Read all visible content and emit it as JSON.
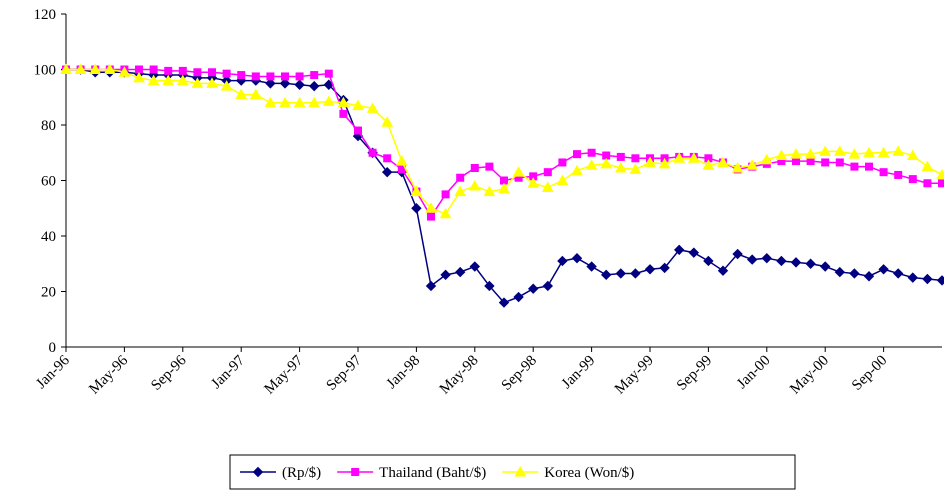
{
  "chart_data": {
    "type": "line",
    "categories": [
      "Jan-96",
      null,
      null,
      null,
      "May-96",
      null,
      null,
      null,
      "Sep-96",
      null,
      null,
      null,
      "Jan-97",
      null,
      null,
      null,
      "May-97",
      null,
      null,
      null,
      "Sep-97",
      null,
      null,
      null,
      "Jan-98",
      null,
      null,
      null,
      "May-98",
      null,
      null,
      null,
      "Sep-98",
      null,
      null,
      null,
      "Jan-99",
      null,
      null,
      null,
      "May-99",
      null,
      null,
      null,
      "Sep-99",
      null,
      null,
      null,
      "Jan-00",
      null,
      null,
      null,
      "May-00",
      null,
      null,
      null,
      "Sep-00",
      null,
      null,
      null,
      null
    ],
    "series": [
      {
        "name": "(Rp/$)",
        "color": "#000080",
        "marker": "diamond",
        "values": [
          100,
          100,
          99,
          99,
          99,
          98.5,
          98,
          98,
          98,
          97,
          97,
          96,
          96,
          96,
          95,
          95,
          94.5,
          94,
          94.5,
          89,
          76,
          70,
          63,
          63,
          50,
          22,
          26,
          27,
          29,
          22,
          16,
          18,
          21,
          22,
          31,
          32,
          29,
          26,
          26.5,
          26.5,
          28,
          28.5,
          35,
          34,
          31,
          27.5,
          33.5,
          31.5,
          32,
          31,
          30.5,
          30,
          29,
          27,
          26.5,
          25.5,
          28,
          26.5,
          25,
          24.5,
          24
        ]
      },
      {
        "name": "Thailand (Baht/$)",
        "color": "#ff00ff",
        "marker": "square",
        "values": [
          100,
          100,
          100,
          100,
          100,
          100,
          100,
          99.5,
          99.5,
          99,
          99,
          98.5,
          98,
          97.5,
          97.5,
          97.5,
          97.5,
          98,
          98.5,
          84,
          78,
          70,
          68,
          64,
          56,
          47,
          55,
          61,
          64.5,
          65,
          60,
          61,
          61.5,
          63,
          66.5,
          69.5,
          70,
          69,
          68.5,
          68,
          68,
          68,
          68.5,
          68.5,
          68,
          66.5,
          64,
          65,
          66,
          67,
          67,
          67,
          66.5,
          66.5,
          65,
          65,
          63,
          62,
          60.5,
          59,
          59
        ]
      },
      {
        "name": "Korea (Won/$)",
        "color": "#ffff00",
        "marker": "triangle",
        "values": [
          100,
          100,
          100,
          100,
          99,
          97,
          96,
          96,
          96,
          95,
          95,
          94,
          91,
          91,
          88,
          88,
          88,
          88,
          88.5,
          88,
          87,
          86,
          81,
          67,
          56,
          50,
          48,
          56,
          58,
          56,
          57,
          63,
          59,
          57.5,
          60,
          63.5,
          65.5,
          66,
          64.5,
          64,
          66.5,
          66,
          68,
          68,
          65.5,
          66.5,
          64.5,
          65.5,
          67.5,
          69,
          69.5,
          69.5,
          70.5,
          70.5,
          69.5,
          70,
          70,
          70.5,
          69,
          65,
          62
        ]
      }
    ],
    "ylim": [
      0,
      120
    ],
    "yticks": [
      0,
      20,
      40,
      60,
      80,
      100,
      120
    ],
    "grid": false,
    "legend": "bottom"
  }
}
